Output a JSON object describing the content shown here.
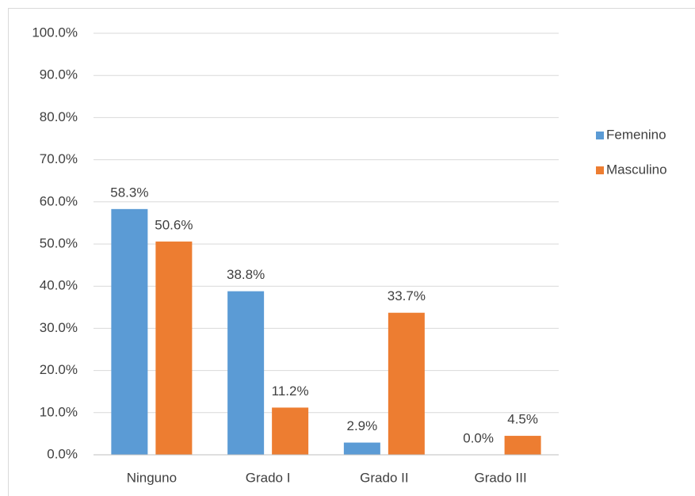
{
  "chart_data": {
    "type": "bar",
    "categories": [
      "Ninguno",
      "Grado I",
      "Grado II",
      "Grado III"
    ],
    "series": [
      {
        "name": "Femenino",
        "color": "#5b9bd5",
        "values": [
          58.3,
          38.8,
          2.9,
          0.0
        ],
        "value_labels": [
          "58.3%",
          "38.8%",
          "2.9%",
          "0.0%"
        ]
      },
      {
        "name": "Masculino",
        "color": "#ed7d31",
        "values": [
          50.6,
          11.2,
          33.7,
          4.5
        ],
        "value_labels": [
          "50.6%",
          "11.2%",
          "33.7%",
          "4.5%"
        ]
      }
    ],
    "ylim": [
      0,
      100
    ],
    "yticks": [
      {
        "value": 0,
        "label": "0.0%"
      },
      {
        "value": 10,
        "label": "10.0%"
      },
      {
        "value": 20,
        "label": "20.0%"
      },
      {
        "value": 30,
        "label": "30.0%"
      },
      {
        "value": 40,
        "label": "40.0%"
      },
      {
        "value": 50,
        "label": "50.0%"
      },
      {
        "value": 60,
        "label": "60.0%"
      },
      {
        "value": 70,
        "label": "70.0%"
      },
      {
        "value": 80,
        "label": "80.0%"
      },
      {
        "value": 90,
        "label": "90.0%"
      },
      {
        "value": 100,
        "label": "100.0%"
      }
    ],
    "grid": true,
    "legend": "right"
  }
}
